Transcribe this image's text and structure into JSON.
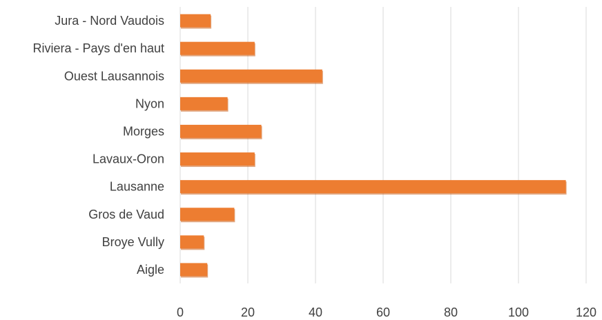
{
  "chart_data": {
    "type": "bar",
    "orientation": "horizontal",
    "categories": [
      "Jura - Nord Vaudois",
      "Riviera - Pays d'en haut",
      "Ouest Lausannois",
      "Nyon",
      "Morges",
      "Lavaux-Oron",
      "Lausanne",
      "Gros de Vaud",
      "Broye Vully",
      "Aigle"
    ],
    "values": [
      9,
      22,
      42,
      14,
      24,
      22,
      114,
      16,
      7,
      8
    ],
    "xlim": [
      0,
      120
    ],
    "xticks": [
      "0",
      "20",
      "40",
      "60",
      "80",
      "100",
      "120"
    ],
    "grid": "vertical",
    "legend": "none",
    "colors": {
      "bar": "#ed7d31",
      "bar_shadow": "#c85f1a"
    }
  }
}
